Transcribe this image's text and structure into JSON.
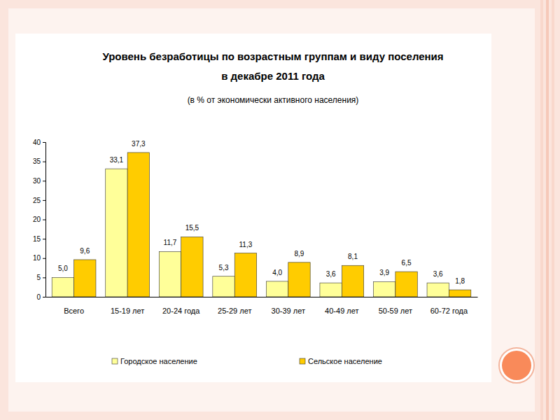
{
  "chart_data": {
    "type": "bar",
    "title": [
      "Уровень безработицы по возрастным группам и виду поселения",
      "в декабре 2011 года"
    ],
    "subtitle": "(в % от экономически активного населения)",
    "categories": [
      "Всего",
      "15-19 лет",
      "20-24 года",
      "25-29 лет",
      "30-39 лет",
      "40-49 лет",
      "50-59 лет",
      "60-72 года"
    ],
    "series": [
      {
        "name": "Городское население",
        "color": "#ffff99",
        "values": [
          5.0,
          33.1,
          11.7,
          5.3,
          4.0,
          3.6,
          3.9,
          3.6
        ],
        "value_labels": [
          "5,0",
          "33,1",
          "11,7",
          "5,3",
          "4,0",
          "3,6",
          "3,9",
          "3,6"
        ]
      },
      {
        "name": "Сельское население",
        "color": "#ffcc00",
        "values": [
          9.6,
          37.3,
          15.5,
          11.3,
          8.9,
          8.1,
          6.5,
          1.8
        ],
        "value_labels": [
          "9,6",
          "37,3",
          "15,5",
          "11,3",
          "8,9",
          "8,1",
          "6,5",
          "1,8"
        ]
      }
    ],
    "ylim": [
      0,
      40
    ],
    "yticks": [
      0,
      5,
      10,
      15,
      20,
      25,
      30,
      35,
      40
    ],
    "grid": false,
    "data_labels": true,
    "legend": "bottom"
  }
}
